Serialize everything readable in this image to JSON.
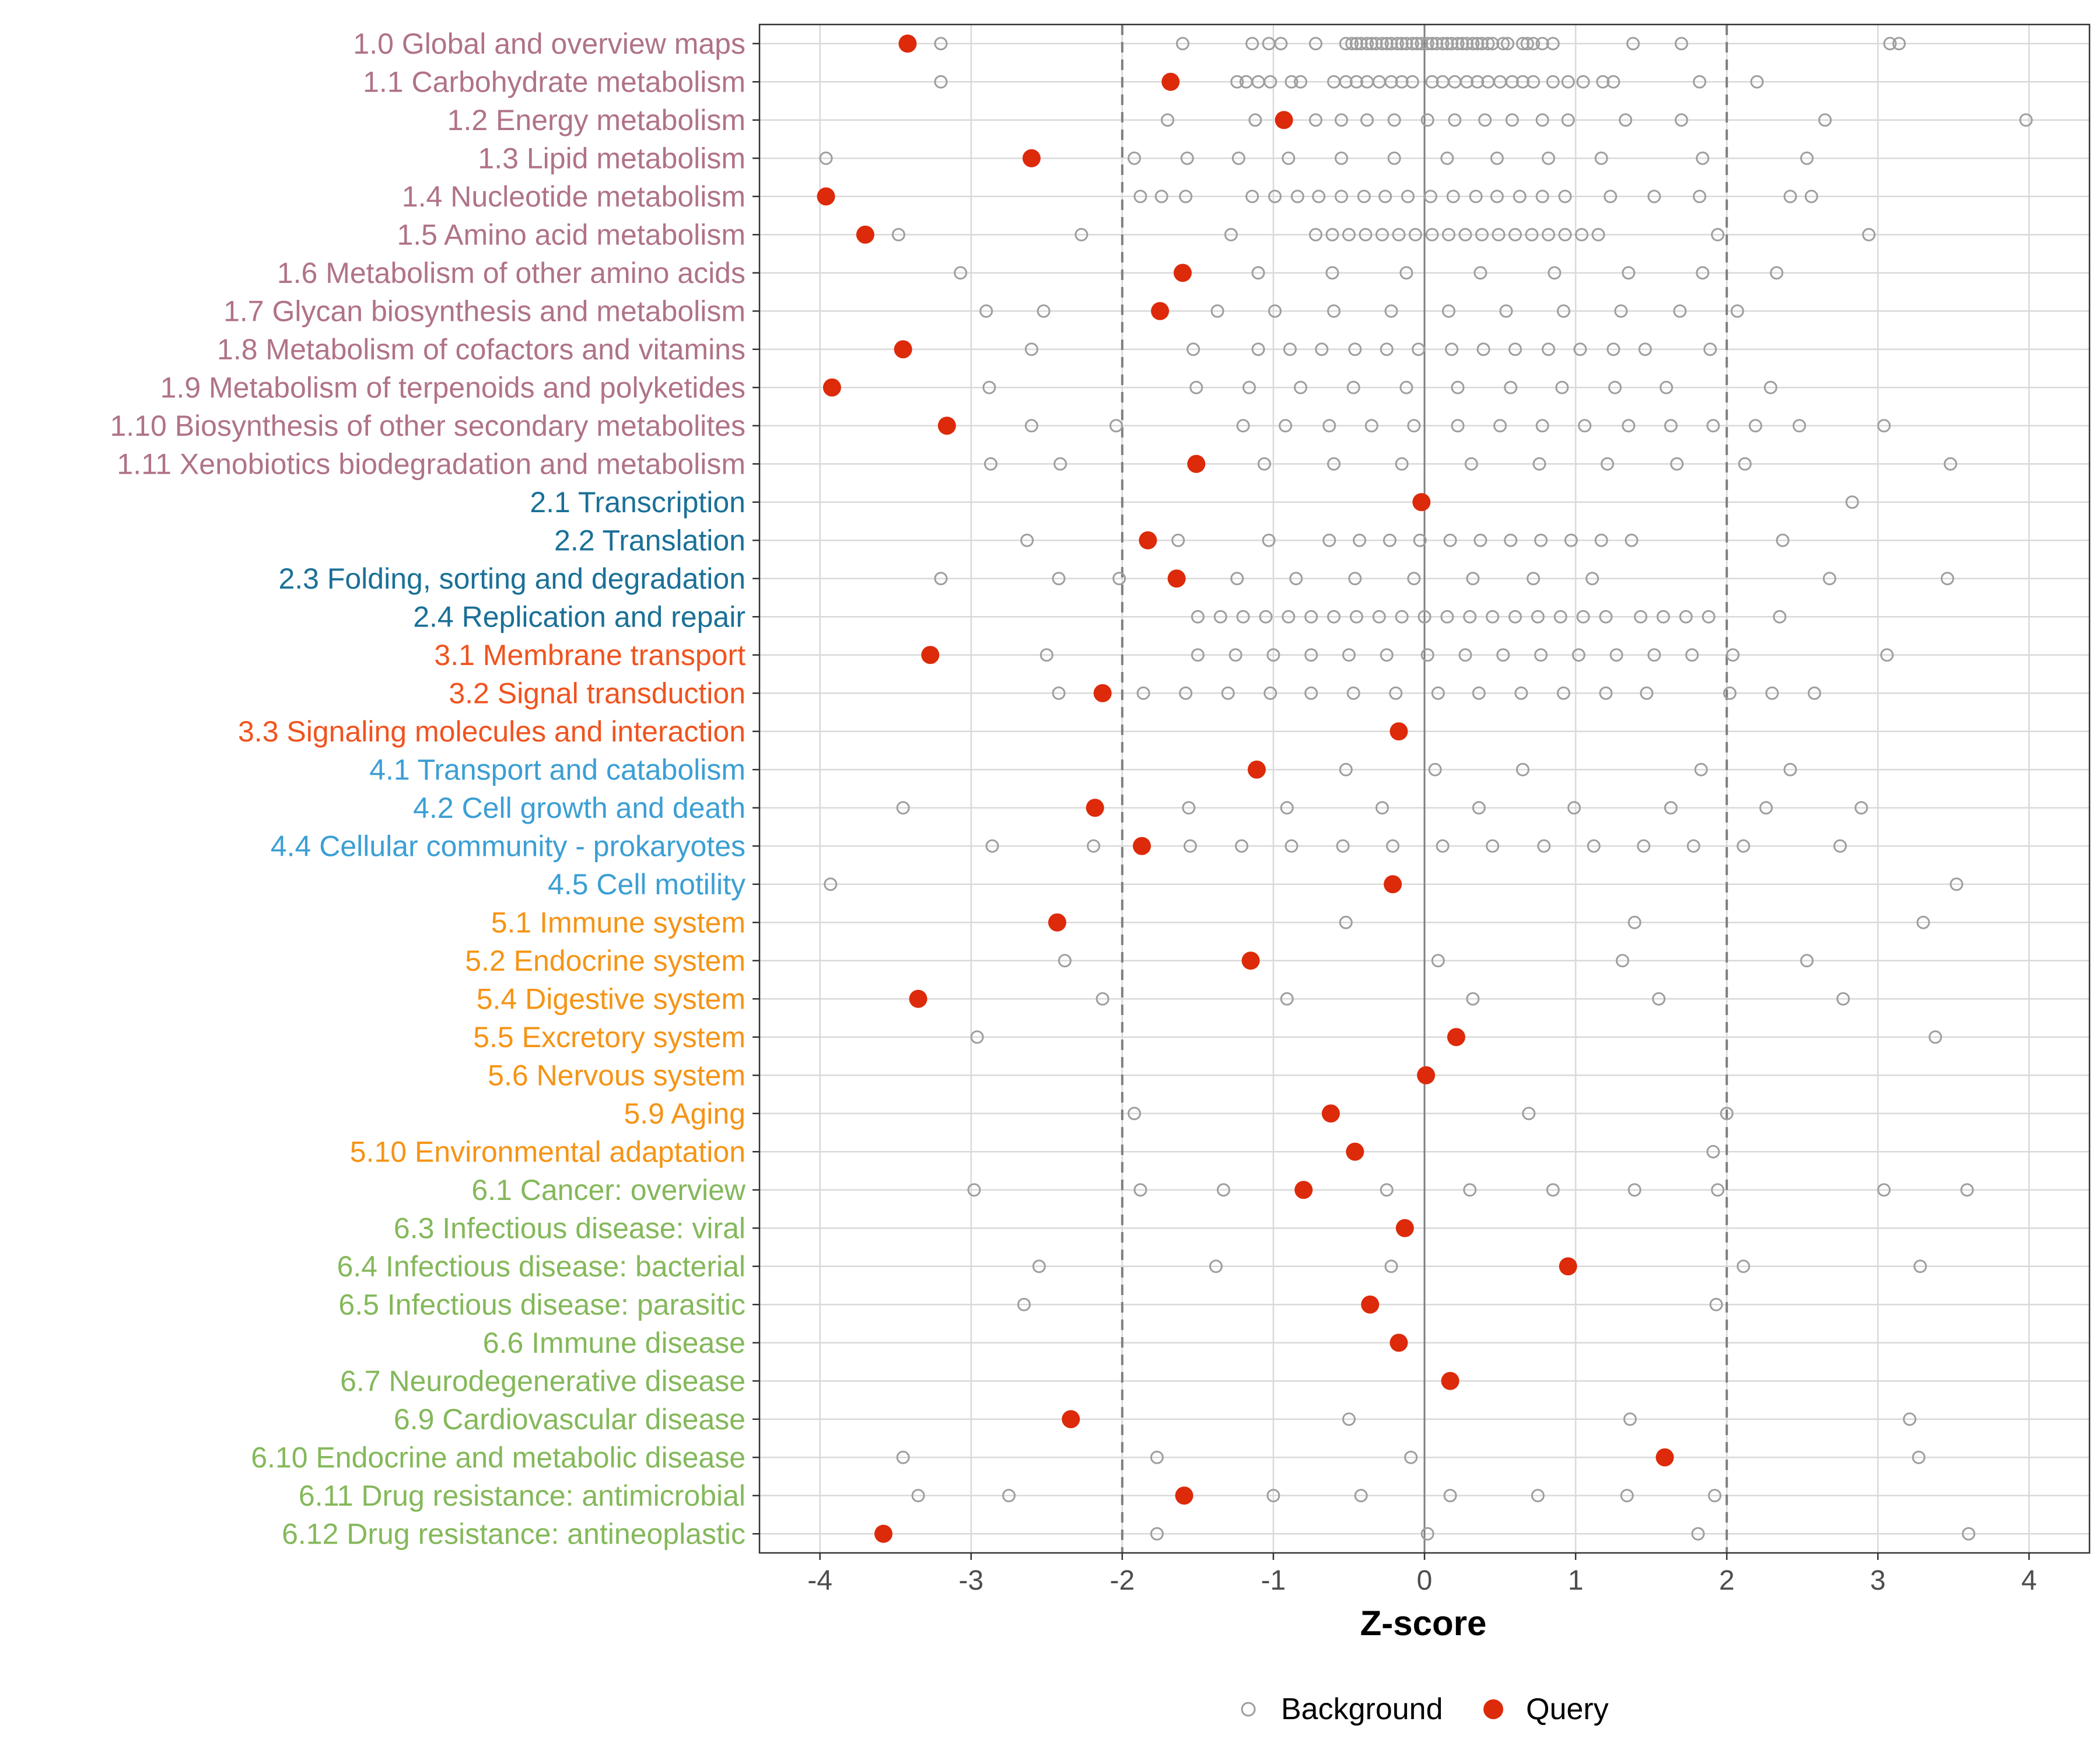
{
  "chart_data": {
    "type": "scatter",
    "xlabel": "Z-score",
    "xlim": [
      -4.4,
      4.4
    ],
    "xticks": [
      -4,
      -3,
      -2,
      -1,
      0,
      1,
      2,
      3,
      4
    ],
    "threshold_lines": [
      -2,
      2
    ],
    "zero_line": 0,
    "grid": true,
    "legend": {
      "position": "bottom",
      "items": [
        {
          "name": "Background",
          "marker": "open-circle",
          "color": "#9e9e9e"
        },
        {
          "name": "Query",
          "marker": "filled-circle",
          "color": "#dc2a0a"
        }
      ]
    },
    "group_colors": {
      "1": "#b07386",
      "2": "#1a7097",
      "3": "#f0531f",
      "4": "#3b9fd4",
      "5": "#f59416",
      "6": "#84b85a"
    },
    "categories": [
      {
        "label": "1.0 Global and overview maps",
        "group": "1",
        "query": -3.42,
        "background": [
          -3.2,
          -1.6,
          -1.14,
          -1.03,
          -0.95,
          -0.72,
          -0.52,
          -0.48,
          -0.45,
          -0.42,
          -0.38,
          -0.35,
          -0.32,
          -0.28,
          -0.25,
          -0.22,
          -0.18,
          -0.15,
          -0.12,
          -0.08,
          -0.05,
          -0.02,
          0.02,
          0.05,
          0.08,
          0.12,
          0.15,
          0.18,
          0.22,
          0.25,
          0.28,
          0.32,
          0.35,
          0.38,
          0.42,
          0.45,
          0.52,
          0.55,
          0.65,
          0.68,
          0.72,
          0.78,
          0.85,
          1.38,
          1.7,
          3.08,
          3.14
        ]
      },
      {
        "label": "1.1 Carbohydrate metabolism",
        "group": "1",
        "query": -1.68,
        "background": [
          -3.2,
          -1.24,
          -1.18,
          -1.1,
          -1.02,
          -0.88,
          -0.82,
          -0.6,
          -0.52,
          -0.45,
          -0.38,
          -0.3,
          -0.22,
          -0.15,
          -0.08,
          0.05,
          0.12,
          0.2,
          0.28,
          0.35,
          0.42,
          0.5,
          0.58,
          0.65,
          0.72,
          0.85,
          0.95,
          1.05,
          1.18,
          1.25,
          1.82,
          2.2
        ]
      },
      {
        "label": "1.2 Energy metabolism",
        "group": "1",
        "query": -0.93,
        "background": [
          -1.7,
          -1.12,
          -0.72,
          -0.55,
          -0.38,
          -0.2,
          0.02,
          0.2,
          0.4,
          0.58,
          0.78,
          0.95,
          1.33,
          1.7,
          2.65,
          3.98
        ]
      },
      {
        "label": "1.3 Lipid metabolism",
        "group": "1",
        "query": -2.6,
        "background": [
          -3.96,
          -1.92,
          -1.57,
          -1.23,
          -0.9,
          -0.55,
          -0.2,
          0.15,
          0.48,
          0.82,
          1.17,
          1.84,
          2.53
        ]
      },
      {
        "label": "1.4 Nucleotide metabolism",
        "group": "1",
        "query": -3.96,
        "background": [
          -1.88,
          -1.74,
          -1.58,
          -1.14,
          -0.99,
          -0.84,
          -0.7,
          -0.55,
          -0.4,
          -0.26,
          -0.11,
          0.04,
          0.19,
          0.34,
          0.48,
          0.63,
          0.78,
          0.93,
          1.23,
          1.52,
          1.82,
          2.42,
          2.56
        ]
      },
      {
        "label": "1.5 Amino acid metabolism",
        "group": "1",
        "query": -3.7,
        "background": [
          -3.48,
          -2.27,
          -1.28,
          -0.72,
          -0.61,
          -0.5,
          -0.39,
          -0.28,
          -0.17,
          -0.06,
          0.05,
          0.16,
          0.27,
          0.38,
          0.49,
          0.6,
          0.71,
          0.82,
          0.93,
          1.04,
          1.15,
          1.94,
          2.94
        ]
      },
      {
        "label": "1.6 Metabolism of other amino acids",
        "group": "1",
        "query": -1.6,
        "background": [
          -3.07,
          -1.1,
          -0.61,
          -0.12,
          0.37,
          0.86,
          1.35,
          1.84,
          2.33
        ]
      },
      {
        "label": "1.7 Glycan biosynthesis and metabolism",
        "group": "1",
        "query": -1.75,
        "background": [
          -2.9,
          -2.52,
          -1.37,
          -0.99,
          -0.6,
          -0.22,
          0.16,
          0.54,
          0.92,
          1.3,
          1.69,
          2.07
        ]
      },
      {
        "label": "1.8 Metabolism of cofactors and vitamins",
        "group": "1",
        "query": -3.45,
        "background": [
          -3.45,
          -2.6,
          -1.53,
          -1.1,
          -0.89,
          -0.68,
          -0.46,
          -0.25,
          -0.04,
          0.18,
          0.39,
          0.6,
          0.82,
          1.03,
          1.25,
          1.46,
          1.89
        ]
      },
      {
        "label": "1.9 Metabolism of terpenoids and polyketides",
        "group": "1",
        "query": -3.92,
        "background": [
          -2.88,
          -1.51,
          -1.16,
          -0.82,
          -0.47,
          -0.12,
          0.22,
          0.57,
          0.91,
          1.26,
          1.6,
          2.29
        ]
      },
      {
        "label": "1.10 Biosynthesis of other secondary metabolites",
        "group": "1",
        "query": -3.16,
        "background": [
          -2.6,
          -2.04,
          -1.2,
          -0.92,
          -0.63,
          -0.35,
          -0.07,
          0.22,
          0.5,
          0.78,
          1.06,
          1.35,
          1.63,
          1.91,
          2.19,
          2.48,
          3.04
        ]
      },
      {
        "label": "1.11 Xenobiotics biodegradation and metabolism",
        "group": "1",
        "query": -1.51,
        "background": [
          -2.87,
          -2.41,
          -1.06,
          -0.6,
          -0.15,
          0.31,
          0.76,
          1.21,
          1.67,
          2.12,
          3.48
        ]
      },
      {
        "label": "2.1 Transcription",
        "group": "2",
        "query": -0.02,
        "background": [
          2.83
        ]
      },
      {
        "label": "2.2 Translation",
        "group": "2",
        "query": -1.83,
        "background": [
          -2.63,
          -1.63,
          -1.03,
          -0.63,
          -0.43,
          -0.23,
          -0.03,
          0.17,
          0.37,
          0.57,
          0.77,
          0.97,
          1.17,
          1.37,
          2.37
        ]
      },
      {
        "label": "2.3 Folding, sorting and degradation",
        "group": "2",
        "query": -1.64,
        "background": [
          -3.2,
          -2.42,
          -2.02,
          -1.24,
          -0.85,
          -0.46,
          -0.07,
          0.32,
          0.72,
          1.11,
          2.68,
          3.46
        ]
      },
      {
        "label": "2.4 Replication and repair",
        "group": "2",
        "query": null,
        "background": [
          -1.5,
          -1.35,
          -1.2,
          -1.05,
          -0.9,
          -0.75,
          -0.6,
          -0.45,
          -0.3,
          -0.15,
          0.0,
          0.15,
          0.3,
          0.45,
          0.6,
          0.75,
          0.9,
          1.05,
          1.2,
          1.43,
          1.58,
          1.73,
          1.88,
          2.35
        ]
      },
      {
        "label": "3.1 Membrane transport",
        "group": "3",
        "query": -3.27,
        "background": [
          -2.5,
          -1.5,
          -1.25,
          -1.0,
          -0.75,
          -0.5,
          -0.25,
          0.02,
          0.27,
          0.52,
          0.77,
          1.02,
          1.27,
          1.52,
          1.77,
          2.04,
          3.06
        ]
      },
      {
        "label": "3.2 Signal transduction",
        "group": "3",
        "query": -2.13,
        "background": [
          -2.42,
          -1.86,
          -1.58,
          -1.3,
          -1.02,
          -0.75,
          -0.47,
          -0.19,
          0.09,
          0.36,
          0.64,
          0.92,
          1.2,
          1.47,
          2.02,
          2.3,
          2.58
        ]
      },
      {
        "label": "3.3 Signaling molecules and interaction",
        "group": "3",
        "query": -0.17,
        "background": []
      },
      {
        "label": "4.1 Transport and catabolism",
        "group": "4",
        "query": -1.11,
        "background": [
          -0.52,
          0.07,
          0.65,
          1.83,
          2.42
        ]
      },
      {
        "label": "4.2 Cell growth and death",
        "group": "4",
        "query": -2.18,
        "background": [
          -3.45,
          -1.56,
          -0.91,
          -0.28,
          0.36,
          0.99,
          1.63,
          2.26,
          2.89
        ]
      },
      {
        "label": "4.4 Cellular community - prokaryotes",
        "group": "4",
        "query": -1.87,
        "background": [
          -2.86,
          -2.19,
          -1.55,
          -1.21,
          -0.88,
          -0.54,
          -0.21,
          0.12,
          0.45,
          0.79,
          1.12,
          1.45,
          1.78,
          2.11,
          2.75
        ]
      },
      {
        "label": "4.5 Cell motility",
        "group": "4",
        "query": -0.21,
        "background": [
          -3.93,
          3.52
        ]
      },
      {
        "label": "5.1 Immune system",
        "group": "5",
        "query": -2.43,
        "background": [
          -0.52,
          1.39,
          3.3
        ]
      },
      {
        "label": "5.2 Endocrine system",
        "group": "5",
        "query": -1.15,
        "background": [
          -2.38,
          0.09,
          1.31,
          2.53
        ]
      },
      {
        "label": "5.4 Digestive system",
        "group": "5",
        "query": -3.35,
        "background": [
          -2.13,
          -0.91,
          0.32,
          1.55,
          2.77
        ]
      },
      {
        "label": "5.5 Excretory system",
        "group": "5",
        "query": 0.21,
        "background": [
          -2.96,
          3.38
        ]
      },
      {
        "label": "5.6 Nervous system",
        "group": "5",
        "query": 0.01,
        "background": []
      },
      {
        "label": "5.9 Aging",
        "group": "5",
        "query": -0.62,
        "background": [
          -1.92,
          0.69,
          2.0
        ]
      },
      {
        "label": "5.10 Environmental adaptation",
        "group": "5",
        "query": -0.46,
        "background": [
          1.91
        ]
      },
      {
        "label": "6.1 Cancer: overview",
        "group": "6",
        "query": -0.8,
        "background": [
          -2.98,
          -1.88,
          -1.33,
          -0.25,
          0.3,
          0.85,
          1.39,
          1.94,
          3.04,
          3.59
        ]
      },
      {
        "label": "6.3 Infectious disease: viral",
        "group": "6",
        "query": -0.13,
        "background": []
      },
      {
        "label": "6.4 Infectious disease: bacterial",
        "group": "6",
        "query": 0.95,
        "background": [
          -2.55,
          -1.38,
          -0.22,
          2.11,
          3.28
        ]
      },
      {
        "label": "6.5 Infectious disease: parasitic",
        "group": "6",
        "query": -0.36,
        "background": [
          -2.65,
          1.93
        ]
      },
      {
        "label": "6.6 Immune disease",
        "group": "6",
        "query": -0.17,
        "background": []
      },
      {
        "label": "6.7 Neurodegenerative disease",
        "group": "6",
        "query": 0.17,
        "background": []
      },
      {
        "label": "6.9 Cardiovascular disease",
        "group": "6",
        "query": -2.34,
        "background": [
          -0.5,
          1.36,
          3.21
        ]
      },
      {
        "label": "6.10 Endocrine and metabolic disease",
        "group": "6",
        "query": 1.59,
        "background": [
          -3.45,
          -1.77,
          -0.09,
          3.27
        ]
      },
      {
        "label": "6.11 Drug resistance: antimicrobial",
        "group": "6",
        "query": -1.59,
        "background": [
          -3.35,
          -2.75,
          -1.0,
          -0.42,
          0.17,
          0.75,
          1.34,
          1.92
        ]
      },
      {
        "label": "6.12 Drug resistance: antineoplastic",
        "group": "6",
        "query": -3.58,
        "background": [
          -1.77,
          0.02,
          1.81,
          3.6
        ]
      }
    ]
  }
}
